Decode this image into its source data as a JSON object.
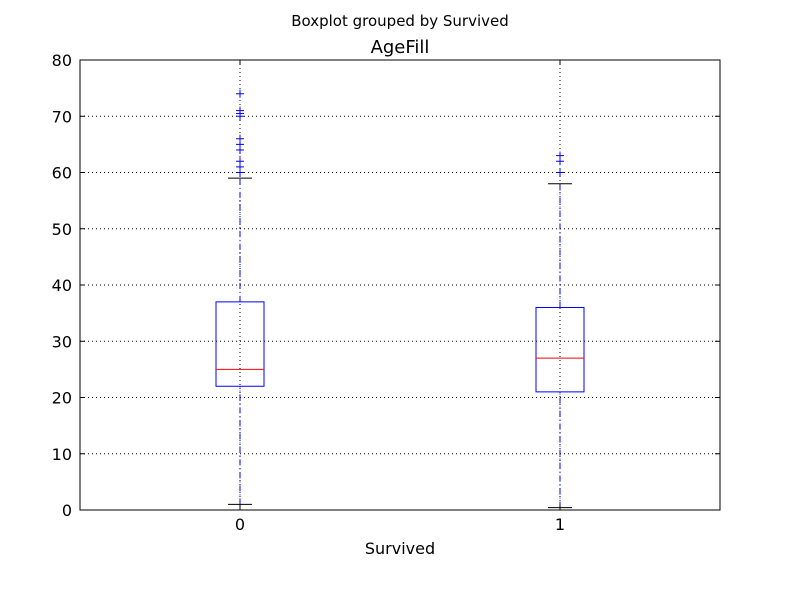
{
  "chart_data": {
    "type": "box",
    "suptitle": "Boxplot grouped by Survived",
    "title": "AgeFill",
    "xlabel": "Survived",
    "ylabel": "",
    "ylim": [
      0,
      80
    ],
    "yticks": [
      0,
      10,
      20,
      30,
      40,
      50,
      60,
      70,
      80
    ],
    "grid": true,
    "categories": [
      "0",
      "1"
    ],
    "boxes": [
      {
        "category": "0",
        "whisker_low": 1,
        "q1": 22,
        "median": 25,
        "q3": 37,
        "whisker_high": 59,
        "outliers": [
          60,
          61,
          62,
          64,
          65,
          66,
          70,
          70.5,
          71,
          74
        ]
      },
      {
        "category": "1",
        "whisker_low": 0.42,
        "q1": 21,
        "median": 27,
        "q3": 36,
        "whisker_high": 58,
        "outliers": [
          60,
          62,
          63
        ]
      }
    ],
    "colors": {
      "box": "#0000ff",
      "median": "#ff0000",
      "whisker_cap": "#000000",
      "outlier": "#0000ff",
      "grid": "#000000"
    }
  }
}
